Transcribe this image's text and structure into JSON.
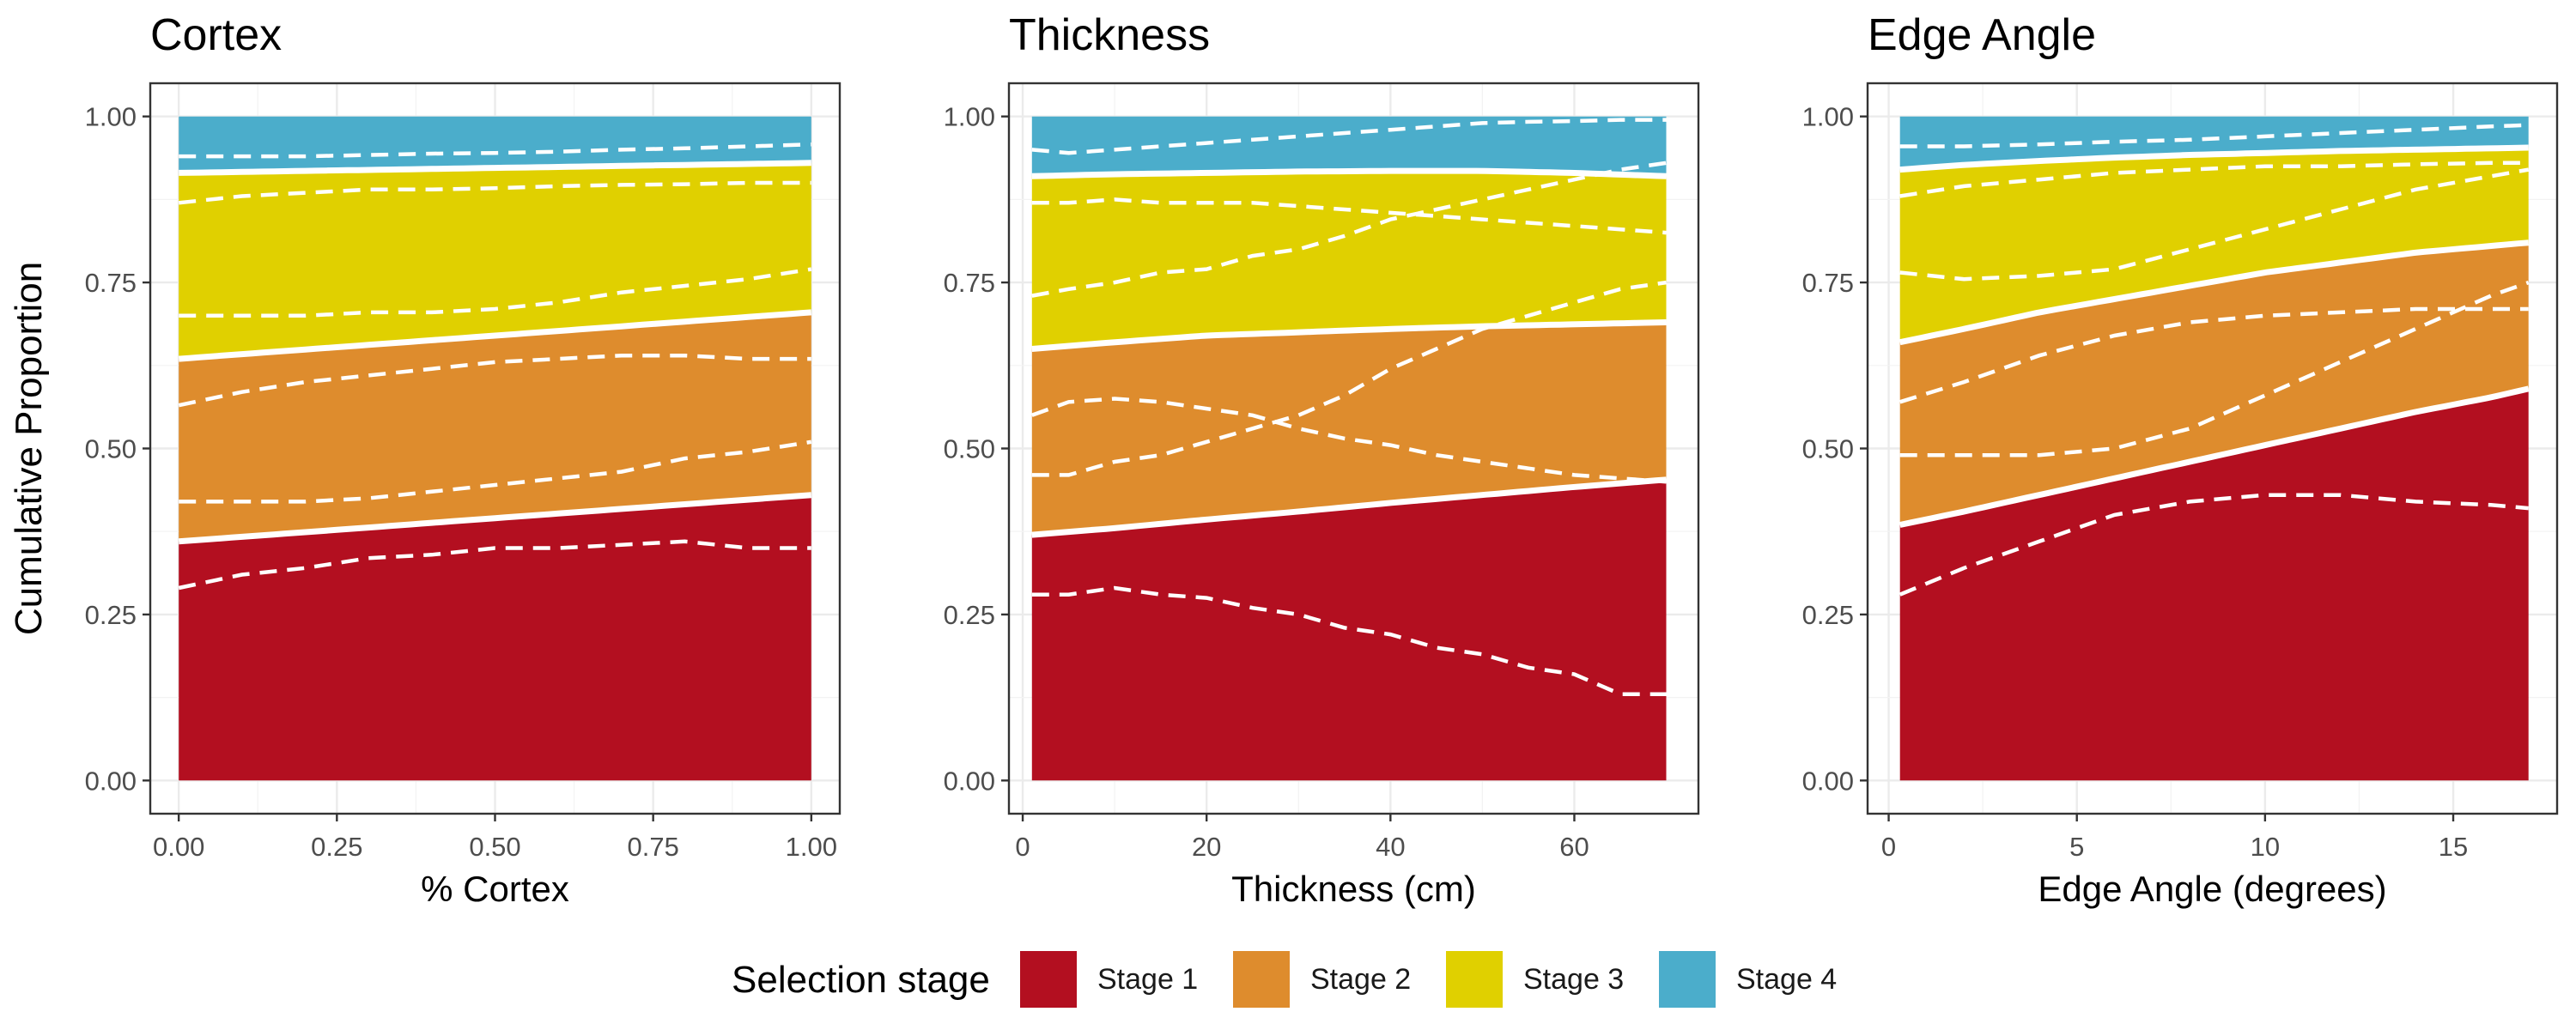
{
  "y_axis_title": "Cumulative Proportion",
  "legend": {
    "title": "Selection stage",
    "items": [
      {
        "label": "Stage 1",
        "color": "#B30F20"
      },
      {
        "label": "Stage 2",
        "color": "#DE8C2D"
      },
      {
        "label": "Stage 3",
        "color": "#E0D000"
      },
      {
        "label": "Stage 4",
        "color": "#4BADCB"
      }
    ]
  },
  "chart_data": [
    {
      "type": "area",
      "title": "Cortex",
      "xlabel": "% Cortex",
      "ylabel": "Cumulative Proportion",
      "xlim": [
        -0.045,
        1.045
      ],
      "ylim": [
        -0.05,
        1.05
      ],
      "x_ticks": [
        0,
        0.25,
        0.5,
        0.75,
        1
      ],
      "x_tick_labels": [
        "0.00",
        "0.25",
        "0.50",
        "0.75",
        "1.00"
      ],
      "y_ticks": [
        0,
        0.25,
        0.5,
        0.75,
        1
      ],
      "y_tick_labels": [
        "0.00",
        "0.25",
        "0.50",
        "0.75",
        "1.00"
      ],
      "fitted_boundaries": [
        {
          "stage": "Stage 1",
          "x": [
            0,
            1
          ],
          "y": [
            0.36,
            0.43
          ]
        },
        {
          "stage": "Stage 2",
          "x": [
            0,
            1
          ],
          "y": [
            0.635,
            0.705
          ]
        },
        {
          "stage": "Stage 3",
          "x": [
            0,
            1
          ],
          "y": [
            0.915,
            0.93
          ]
        }
      ],
      "empirical_boundaries": [
        {
          "stage": "Stage 1",
          "x": [
            0,
            0.1,
            0.2,
            0.3,
            0.4,
            0.5,
            0.6,
            0.7,
            0.8,
            0.9,
            1.0
          ],
          "y": [
            0.29,
            0.31,
            0.32,
            0.335,
            0.34,
            0.35,
            0.35,
            0.355,
            0.36,
            0.35,
            0.35
          ]
        },
        {
          "stage": "Stage 2",
          "x": [
            0,
            0.1,
            0.2,
            0.3,
            0.4,
            0.5,
            0.6,
            0.7,
            0.8,
            0.9,
            1.0
          ],
          "y": [
            0.42,
            0.42,
            0.42,
            0.425,
            0.435,
            0.445,
            0.455,
            0.465,
            0.485,
            0.495,
            0.51
          ]
        },
        {
          "stage": "Stage 2",
          "x": [
            0,
            0.1,
            0.2,
            0.3,
            0.4,
            0.5,
            0.6,
            0.7,
            0.8,
            0.9,
            1.0
          ],
          "y": [
            0.565,
            0.585,
            0.6,
            0.61,
            0.62,
            0.63,
            0.635,
            0.64,
            0.64,
            0.635,
            0.635
          ]
        },
        {
          "stage": "Stage 3",
          "x": [
            0,
            0.1,
            0.2,
            0.3,
            0.4,
            0.5,
            0.6,
            0.7,
            0.8,
            0.9,
            1.0
          ],
          "y": [
            0.7,
            0.7,
            0.7,
            0.705,
            0.705,
            0.71,
            0.72,
            0.735,
            0.745,
            0.755,
            0.77
          ]
        },
        {
          "stage": "Stage 3",
          "x": [
            0,
            0.1,
            0.2,
            0.3,
            0.4,
            0.5,
            0.6,
            0.7,
            0.8,
            0.9,
            1.0
          ],
          "y": [
            0.87,
            0.88,
            0.885,
            0.89,
            0.89,
            0.892,
            0.895,
            0.897,
            0.898,
            0.9,
            0.9
          ]
        },
        {
          "stage": "Stage 4",
          "x": [
            0,
            0.1,
            0.2,
            0.3,
            0.4,
            0.5,
            0.6,
            0.7,
            0.8,
            0.9,
            1.0
          ],
          "y": [
            0.94,
            0.94,
            0.94,
            0.942,
            0.944,
            0.945,
            0.947,
            0.95,
            0.952,
            0.955,
            0.958
          ]
        }
      ]
    },
    {
      "type": "area",
      "title": "Thickness",
      "xlabel": "Thickness (cm)",
      "ylabel": "Cumulative Proportion",
      "xlim": [
        -1.5,
        73.5
      ],
      "ylim": [
        -0.05,
        1.05
      ],
      "x_ticks": [
        0,
        20,
        40,
        60
      ],
      "x_tick_labels": [
        "0",
        "20",
        "40",
        "60"
      ],
      "y_ticks": [
        0,
        0.25,
        0.5,
        0.75,
        1
      ],
      "y_tick_labels": [
        "0.00",
        "0.25",
        "0.50",
        "0.75",
        "1.00"
      ],
      "fitted_boundaries": [
        {
          "stage": "Stage 1",
          "x": [
            1,
            10,
            20,
            30,
            40,
            50,
            60,
            70
          ],
          "y": [
            0.37,
            0.38,
            0.393,
            0.405,
            0.418,
            0.43,
            0.442,
            0.453
          ]
        },
        {
          "stage": "Stage 2",
          "x": [
            1,
            10,
            20,
            30,
            40,
            50,
            60,
            70
          ],
          "y": [
            0.65,
            0.66,
            0.67,
            0.675,
            0.68,
            0.684,
            0.687,
            0.69
          ]
        },
        {
          "stage": "Stage 3",
          "x": [
            1,
            10,
            20,
            30,
            40,
            50,
            60,
            70
          ],
          "y": [
            0.91,
            0.913,
            0.915,
            0.917,
            0.918,
            0.918,
            0.915,
            0.91
          ]
        }
      ],
      "empirical_boundaries": [
        {
          "stage": "Stage 1",
          "x": [
            1,
            5,
            10,
            15,
            20,
            25,
            30,
            35,
            40,
            45,
            50,
            55,
            60,
            65,
            70
          ],
          "y": [
            0.28,
            0.28,
            0.29,
            0.28,
            0.275,
            0.26,
            0.25,
            0.23,
            0.22,
            0.2,
            0.19,
            0.17,
            0.16,
            0.13,
            0.13
          ]
        },
        {
          "stage": "Stage 2",
          "x": [
            1,
            5,
            10,
            15,
            20,
            25,
            30,
            35,
            40,
            45,
            50,
            55,
            60,
            65,
            70
          ],
          "y": [
            0.46,
            0.46,
            0.48,
            0.49,
            0.51,
            0.53,
            0.55,
            0.58,
            0.62,
            0.65,
            0.68,
            0.7,
            0.72,
            0.74,
            0.75
          ]
        },
        {
          "stage": "Stage 2",
          "x": [
            1,
            5,
            10,
            15,
            20,
            25,
            30,
            35,
            40,
            45,
            50,
            55,
            60,
            65,
            70
          ],
          "y": [
            0.55,
            0.57,
            0.575,
            0.57,
            0.56,
            0.55,
            0.53,
            0.515,
            0.505,
            0.49,
            0.48,
            0.47,
            0.46,
            0.455,
            0.45
          ]
        },
        {
          "stage": "Stage 3",
          "x": [
            1,
            5,
            10,
            15,
            20,
            25,
            30,
            35,
            40,
            45,
            50,
            55,
            60,
            65,
            70
          ],
          "y": [
            0.73,
            0.74,
            0.75,
            0.765,
            0.77,
            0.79,
            0.8,
            0.82,
            0.845,
            0.86,
            0.875,
            0.89,
            0.905,
            0.92,
            0.93
          ]
        },
        {
          "stage": "Stage 3",
          "x": [
            1,
            5,
            10,
            15,
            20,
            25,
            30,
            35,
            40,
            45,
            50,
            55,
            60,
            65,
            70
          ],
          "y": [
            0.87,
            0.87,
            0.875,
            0.87,
            0.87,
            0.87,
            0.865,
            0.86,
            0.855,
            0.85,
            0.845,
            0.84,
            0.835,
            0.83,
            0.825
          ]
        },
        {
          "stage": "Stage 4",
          "x": [
            1,
            5,
            10,
            15,
            20,
            25,
            30,
            35,
            40,
            45,
            50,
            55,
            60,
            65,
            70
          ],
          "y": [
            0.95,
            0.945,
            0.95,
            0.955,
            0.96,
            0.965,
            0.97,
            0.975,
            0.98,
            0.985,
            0.99,
            0.992,
            0.993,
            0.995,
            0.995
          ]
        }
      ]
    },
    {
      "type": "area",
      "title": "Edge Angle",
      "xlabel": "Edge Angle (degrees)",
      "ylabel": "Cumulative Proportion",
      "xlim": [
        -0.56,
        17.76
      ],
      "ylim": [
        -0.05,
        1.05
      ],
      "x_ticks": [
        0,
        5,
        10,
        15
      ],
      "x_tick_labels": [
        "0",
        "5",
        "10",
        "15"
      ],
      "y_ticks": [
        0,
        0.25,
        0.5,
        0.75,
        1
      ],
      "y_tick_labels": [
        "0.00",
        "0.25",
        "0.50",
        "0.75",
        "1.00"
      ],
      "fitted_boundaries": [
        {
          "stage": "Stage 1",
          "x": [
            0.3,
            2,
            4,
            6,
            8,
            10,
            12,
            14,
            16,
            17
          ],
          "y": [
            0.385,
            0.405,
            0.43,
            0.455,
            0.48,
            0.505,
            0.53,
            0.555,
            0.577,
            0.59
          ]
        },
        {
          "stage": "Stage 2",
          "x": [
            0.3,
            2,
            4,
            6,
            8,
            10,
            12,
            14,
            16,
            17
          ],
          "y": [
            0.66,
            0.68,
            0.705,
            0.725,
            0.745,
            0.765,
            0.78,
            0.795,
            0.805,
            0.81
          ]
        },
        {
          "stage": "Stage 3",
          "x": [
            0.3,
            2,
            4,
            6,
            8,
            10,
            12,
            14,
            16,
            17
          ],
          "y": [
            0.92,
            0.927,
            0.933,
            0.938,
            0.942,
            0.945,
            0.948,
            0.95,
            0.952,
            0.953
          ]
        }
      ],
      "empirical_boundaries": [
        {
          "stage": "Stage 1",
          "x": [
            0.3,
            2,
            4,
            6,
            8,
            10,
            12,
            14,
            16,
            17
          ],
          "y": [
            0.28,
            0.32,
            0.36,
            0.4,
            0.42,
            0.43,
            0.43,
            0.42,
            0.415,
            0.41
          ]
        },
        {
          "stage": "Stage 2",
          "x": [
            0.3,
            2,
            4,
            6,
            8,
            10,
            12,
            14,
            16,
            17
          ],
          "y": [
            0.49,
            0.49,
            0.49,
            0.5,
            0.53,
            0.58,
            0.63,
            0.68,
            0.73,
            0.75
          ]
        },
        {
          "stage": "Stage 2",
          "x": [
            0.3,
            2,
            4,
            6,
            8,
            10,
            12,
            14,
            16,
            17
          ],
          "y": [
            0.57,
            0.6,
            0.64,
            0.67,
            0.69,
            0.7,
            0.705,
            0.71,
            0.71,
            0.71
          ]
        },
        {
          "stage": "Stage 3",
          "x": [
            0.3,
            2,
            4,
            6,
            8,
            10,
            12,
            14,
            16,
            17
          ],
          "y": [
            0.765,
            0.755,
            0.76,
            0.77,
            0.8,
            0.83,
            0.86,
            0.89,
            0.91,
            0.92
          ]
        },
        {
          "stage": "Stage 3",
          "x": [
            0.3,
            2,
            4,
            6,
            8,
            10,
            12,
            14,
            16,
            17
          ],
          "y": [
            0.88,
            0.895,
            0.905,
            0.915,
            0.92,
            0.925,
            0.925,
            0.928,
            0.93,
            0.93
          ]
        },
        {
          "stage": "Stage 4",
          "x": [
            0.3,
            2,
            4,
            6,
            8,
            10,
            12,
            14,
            16,
            17
          ],
          "y": [
            0.955,
            0.955,
            0.958,
            0.962,
            0.965,
            0.97,
            0.975,
            0.98,
            0.985,
            0.987
          ]
        }
      ]
    }
  ]
}
